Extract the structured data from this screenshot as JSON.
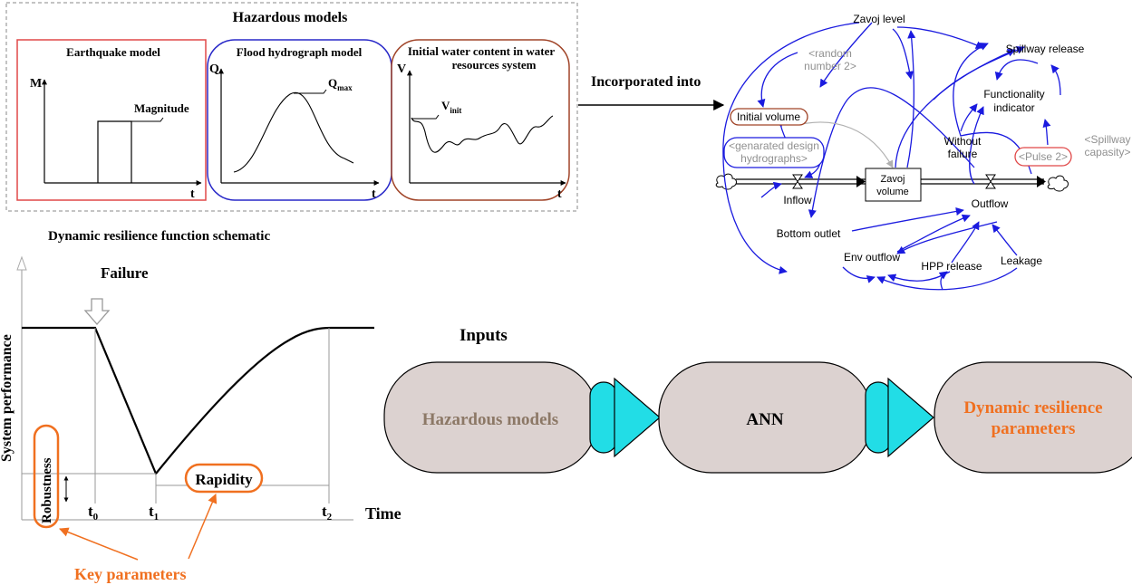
{
  "hazard_panel": {
    "title": "Hazardous models",
    "earthquake": {
      "title": "Earthquake model",
      "y_axis": "M",
      "x_axis": "t",
      "label": "Magnitude"
    },
    "flood": {
      "title": "Flood hydrograph model",
      "y_axis": "Q",
      "x_axis": "t",
      "peak_base": "Q",
      "peak_sub": "max"
    },
    "water": {
      "title_line1": "Initial water content in water",
      "title_line2": "resources system",
      "y_axis": "V",
      "x_axis": "t",
      "init_base": "V",
      "init_sub": "init"
    }
  },
  "connector": {
    "label": "Incorporated into"
  },
  "sd_model": {
    "nodes": {
      "zavoj_level": "Zavoj level",
      "spillway_release": "Spillway release",
      "random_line1": "<random",
      "random_line2": "number 2>",
      "functionality_line1": "Functionality",
      "functionality_line2": "indicator",
      "initial_volume": "Initial volume",
      "design_line1": "<genarated design",
      "design_line2": "hydrographs>",
      "without_line1": "Without",
      "without_line2": "failure",
      "spillcap_line1": "<Spillway",
      "spillcap_line2": "capasity>",
      "pulse": "<Pulse 2>",
      "zavoj_volume_line1": "Zavoj",
      "zavoj_volume_line2": "volume",
      "inflow": "Inflow",
      "outflow": "Outflow",
      "bottom_outlet": "Bottom outlet",
      "env_outflow": "Env outflow",
      "hpp_release": "HPP release",
      "leakage": "Leakage"
    }
  },
  "resilience": {
    "title": "Dynamic resilience function schematic",
    "y_label": "System performance",
    "x_label": "Time",
    "failure": "Failure",
    "t0": "t",
    "t0_sub": "0",
    "t1": "t",
    "t1_sub": "1",
    "t2": "t",
    "t2_sub": "2",
    "robustness": "Robustness",
    "rapidity": "Rapidity",
    "key_parameters": "Key parameters"
  },
  "pipeline": {
    "inputs_label": "Inputs",
    "hazard": "Hazardous models",
    "ann": "ANN",
    "output_line1": "Dynamic resilience",
    "output_line2": "parameters"
  },
  "colors": {
    "blue": "#1a1adf",
    "red_box": "#e04848",
    "brown": "#a04428",
    "orange": "#f07020",
    "cyan": "#22dde6",
    "capsule": "#dcd2d0",
    "gray_text": "#909090",
    "hazard_text": "#8c7866"
  }
}
